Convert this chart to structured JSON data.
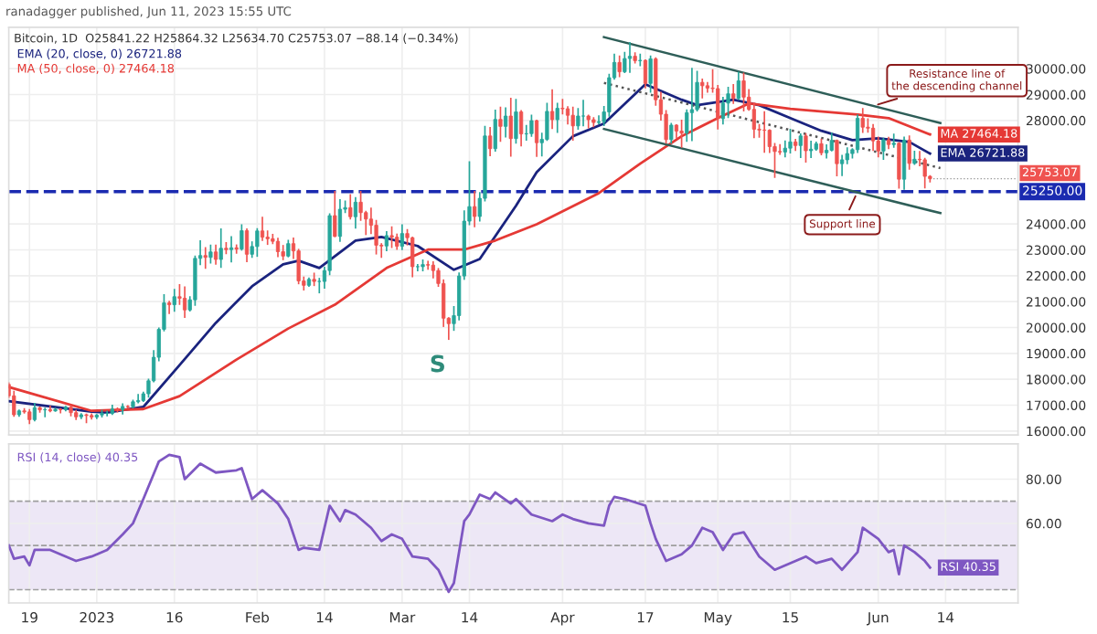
{
  "chart_data": [
    {
      "type": "candlestick",
      "title": "ranadagger published, Jun 11, 2023 15:55 UTC",
      "subtitle": "Bitcoin, 1D  O25841.22 H25864.32 L25634.70 C25753.07 −88.14 (−0.34%)",
      "x": [
        "2022-12-15",
        "2022-12-16",
        "2022-12-17",
        "2022-12-18",
        "2022-12-19",
        "2022-12-20",
        "2022-12-21",
        "2022-12-22",
        "2022-12-23",
        "2022-12-24",
        "2022-12-25",
        "2022-12-26",
        "2022-12-27",
        "2022-12-28",
        "2022-12-29",
        "2022-12-30",
        "2022-12-31",
        "2023-01-01",
        "2023-01-02",
        "2023-01-03",
        "2023-01-04",
        "2023-01-05",
        "2023-01-06",
        "2023-01-07",
        "2023-01-08",
        "2023-01-09",
        "2023-01-10",
        "2023-01-11",
        "2023-01-12",
        "2023-01-13",
        "2023-01-14",
        "2023-01-15",
        "2023-01-16",
        "2023-01-17",
        "2023-01-18",
        "2023-01-19",
        "2023-01-20",
        "2023-01-21",
        "2023-01-22",
        "2023-01-23",
        "2023-01-24",
        "2023-01-25",
        "2023-01-26",
        "2023-01-27",
        "2023-01-28",
        "2023-01-29",
        "2023-01-30",
        "2023-01-31",
        "2023-02-01",
        "2023-02-02",
        "2023-02-03",
        "2023-02-04",
        "2023-02-05",
        "2023-02-06",
        "2023-02-07",
        "2023-02-08",
        "2023-02-09",
        "2023-02-10",
        "2023-02-11",
        "2023-02-12",
        "2023-02-13",
        "2023-02-14",
        "2023-02-15",
        "2023-02-16",
        "2023-02-17",
        "2023-02-18",
        "2023-02-19",
        "2023-02-20",
        "2023-02-21",
        "2023-02-22",
        "2023-02-23",
        "2023-02-24",
        "2023-02-25",
        "2023-02-26",
        "2023-02-27",
        "2023-02-28",
        "2023-03-01",
        "2023-03-02",
        "2023-03-03",
        "2023-03-04",
        "2023-03-05",
        "2023-03-06",
        "2023-03-07",
        "2023-03-08",
        "2023-03-09",
        "2023-03-10",
        "2023-03-11",
        "2023-03-12",
        "2023-03-13",
        "2023-03-14",
        "2023-03-15",
        "2023-03-16",
        "2023-03-17",
        "2023-03-18",
        "2023-03-19",
        "2023-03-20",
        "2023-03-21",
        "2023-03-22",
        "2023-03-23",
        "2023-03-24",
        "2023-03-25",
        "2023-03-26",
        "2023-03-27",
        "2023-03-28",
        "2023-03-29",
        "2023-03-30",
        "2023-03-31",
        "2023-04-01",
        "2023-04-02",
        "2023-04-03",
        "2023-04-04",
        "2023-04-05",
        "2023-04-06",
        "2023-04-07",
        "2023-04-08",
        "2023-04-09",
        "2023-04-10",
        "2023-04-11",
        "2023-04-12",
        "2023-04-13",
        "2023-04-14",
        "2023-04-15",
        "2023-04-16",
        "2023-04-17",
        "2023-04-18",
        "2023-04-19",
        "2023-04-20",
        "2023-04-21",
        "2023-04-22",
        "2023-04-23",
        "2023-04-24",
        "2023-04-25",
        "2023-04-26",
        "2023-04-27",
        "2023-04-28",
        "2023-04-29",
        "2023-04-30",
        "2023-05-01",
        "2023-05-02",
        "2023-05-03",
        "2023-05-04",
        "2023-05-05",
        "2023-05-06",
        "2023-05-07",
        "2023-05-08",
        "2023-05-09",
        "2023-05-10",
        "2023-05-11",
        "2023-05-12",
        "2023-05-13",
        "2023-05-14",
        "2023-05-15",
        "2023-05-16",
        "2023-05-17",
        "2023-05-18",
        "2023-05-19",
        "2023-05-20",
        "2023-05-21",
        "2023-05-22",
        "2023-05-23",
        "2023-05-24",
        "2023-05-25",
        "2023-05-26",
        "2023-05-27",
        "2023-05-28",
        "2023-05-29",
        "2023-05-30",
        "2023-05-31",
        "2023-06-01",
        "2023-06-02",
        "2023-06-03",
        "2023-06-04",
        "2023-06-05",
        "2023-06-06",
        "2023-06-07",
        "2023-06-08",
        "2023-06-09",
        "2023-06-10",
        "2023-06-11"
      ],
      "ohlc": [
        [
          17800,
          17850,
          17300,
          17360
        ],
        [
          17360,
          17530,
          16580,
          16630
        ],
        [
          16630,
          16800,
          16580,
          16780
        ],
        [
          16780,
          16860,
          16700,
          16740
        ],
        [
          16740,
          16820,
          16300,
          16440
        ],
        [
          16440,
          17060,
          16400,
          16900
        ],
        [
          16900,
          16920,
          16740,
          16820
        ],
        [
          16820,
          16870,
          16560,
          16830
        ],
        [
          16830,
          16950,
          16760,
          16780
        ],
        [
          16780,
          16870,
          16770,
          16840
        ],
        [
          16840,
          16860,
          16710,
          16830
        ],
        [
          16830,
          16940,
          16790,
          16920
        ],
        [
          16920,
          16970,
          16600,
          16710
        ],
        [
          16710,
          16790,
          16460,
          16550
        ],
        [
          16550,
          16660,
          16490,
          16630
        ],
        [
          16630,
          16640,
          16330,
          16600
        ],
        [
          16600,
          16650,
          16470,
          16540
        ],
        [
          16540,
          16630,
          16490,
          16620
        ],
        [
          16620,
          16790,
          16550,
          16680
        ],
        [
          16680,
          16760,
          16600,
          16680
        ],
        [
          16680,
          16990,
          16650,
          16850
        ],
        [
          16850,
          16880,
          16750,
          16830
        ],
        [
          16830,
          17040,
          16670,
          16950
        ],
        [
          16950,
          16970,
          16910,
          16940
        ],
        [
          16940,
          17180,
          16910,
          17130
        ],
        [
          17130,
          17400,
          17100,
          17180
        ],
        [
          17180,
          17490,
          17150,
          17440
        ],
        [
          17440,
          17990,
          17320,
          17940
        ],
        [
          17940,
          19100,
          17910,
          18850
        ],
        [
          18850,
          19970,
          18720,
          19930
        ],
        [
          19930,
          21260,
          19880,
          20950
        ],
        [
          20950,
          21000,
          20550,
          20880
        ],
        [
          20880,
          21460,
          20640,
          21190
        ],
        [
          21190,
          21650,
          20900,
          21130
        ],
        [
          21130,
          21560,
          20400,
          20680
        ],
        [
          20680,
          21180,
          20650,
          21070
        ],
        [
          21070,
          22750,
          20870,
          22670
        ],
        [
          22670,
          23340,
          22440,
          22780
        ],
        [
          22780,
          23080,
          22300,
          22710
        ],
        [
          22710,
          23170,
          22500,
          22920
        ],
        [
          22920,
          23170,
          22460,
          22630
        ],
        [
          22630,
          23800,
          22330,
          23060
        ],
        [
          23060,
          23270,
          22860,
          23010
        ],
        [
          23010,
          23500,
          22540,
          23080
        ],
        [
          23080,
          23180,
          22880,
          23030
        ],
        [
          23030,
          23960,
          23000,
          23740
        ],
        [
          23740,
          23800,
          22550,
          22830
        ],
        [
          22830,
          23300,
          22720,
          23130
        ],
        [
          23130,
          23810,
          22760,
          23730
        ],
        [
          23730,
          24250,
          23370,
          23490
        ],
        [
          23490,
          23720,
          23220,
          23430
        ],
        [
          23430,
          23590,
          23250,
          23330
        ],
        [
          23330,
          23440,
          22750,
          22930
        ],
        [
          22930,
          23160,
          22630,
          22760
        ],
        [
          22760,
          23360,
          22740,
          23240
        ],
        [
          23240,
          23450,
          22680,
          22960
        ],
        [
          22960,
          23010,
          21700,
          21800
        ],
        [
          21800,
          21940,
          21460,
          21630
        ],
        [
          21630,
          21900,
          21600,
          21860
        ],
        [
          21860,
          22090,
          21630,
          21780
        ],
        [
          21780,
          21890,
          21350,
          21780
        ],
        [
          21780,
          22320,
          21530,
          22200
        ],
        [
          22200,
          24380,
          22050,
          24320
        ],
        [
          24320,
          25250,
          23520,
          23520
        ],
        [
          23520,
          24930,
          23340,
          24570
        ],
        [
          24570,
          24880,
          24450,
          24630
        ],
        [
          24630,
          25120,
          24200,
          24280
        ],
        [
          24280,
          25010,
          23850,
          24840
        ],
        [
          24840,
          25250,
          24150,
          24440
        ],
        [
          24440,
          24480,
          23600,
          24190
        ],
        [
          24190,
          24600,
          23640,
          23950
        ],
        [
          23950,
          24130,
          22850,
          23180
        ],
        [
          23180,
          23230,
          22720,
          23150
        ],
        [
          23150,
          23690,
          22980,
          23550
        ],
        [
          23550,
          23880,
          23100,
          23490
        ],
        [
          23490,
          23600,
          23030,
          23140
        ],
        [
          23140,
          23960,
          23020,
          23630
        ],
        [
          23630,
          23770,
          23200,
          23470
        ],
        [
          23470,
          23480,
          21970,
          22350
        ],
        [
          22350,
          22420,
          22200,
          22350
        ],
        [
          22350,
          22600,
          22200,
          22430
        ],
        [
          22430,
          22550,
          22260,
          22410
        ],
        [
          22410,
          22530,
          21930,
          22200
        ],
        [
          22200,
          22270,
          21600,
          21700
        ],
        [
          21700,
          21830,
          20050,
          20360
        ],
        [
          20360,
          20370,
          19550,
          20150
        ],
        [
          20150,
          20800,
          19900,
          20460
        ],
        [
          20460,
          22100,
          20300,
          21990
        ],
        [
          21990,
          24500,
          21870,
          24110
        ],
        [
          24110,
          26390,
          23980,
          24670
        ],
        [
          24670,
          25250,
          23900,
          24290
        ],
        [
          24290,
          25200,
          24120,
          24990
        ],
        [
          24990,
          27760,
          24900,
          27400
        ],
        [
          27400,
          27720,
          26650,
          26910
        ],
        [
          26910,
          28390,
          26820,
          28040
        ],
        [
          28040,
          28500,
          27200,
          27770
        ],
        [
          27770,
          28480,
          27370,
          28170
        ],
        [
          28170,
          28850,
          26630,
          27300
        ],
        [
          27300,
          28800,
          27130,
          28330
        ],
        [
          28330,
          28370,
          27030,
          27480
        ],
        [
          27480,
          27800,
          27250,
          27490
        ],
        [
          27490,
          28190,
          27400,
          27990
        ],
        [
          27990,
          28000,
          26620,
          27140
        ],
        [
          27140,
          27500,
          26640,
          27270
        ],
        [
          27270,
          28650,
          27240,
          28350
        ],
        [
          28350,
          29170,
          27700,
          28030
        ],
        [
          28030,
          28650,
          27550,
          28470
        ],
        [
          28470,
          28800,
          28260,
          28450
        ],
        [
          28450,
          28520,
          27870,
          28200
        ],
        [
          28200,
          28500,
          27250,
          27790
        ],
        [
          27790,
          28450,
          27670,
          28170
        ],
        [
          28170,
          28770,
          27800,
          28170
        ],
        [
          28170,
          28190,
          27720,
          28030
        ],
        [
          28030,
          28100,
          27770,
          27920
        ],
        [
          27920,
          28170,
          27880,
          27950
        ],
        [
          27950,
          28530,
          27810,
          28330
        ],
        [
          28330,
          29770,
          28170,
          29650
        ],
        [
          29650,
          30550,
          29600,
          30240
        ],
        [
          30240,
          30480,
          29700,
          29880
        ],
        [
          29880,
          30620,
          29860,
          30390
        ],
        [
          30390,
          31000,
          29870,
          30480
        ],
        [
          30480,
          30600,
          30230,
          30310
        ],
        [
          30310,
          30550,
          30120,
          30320
        ],
        [
          30320,
          30330,
          29270,
          29430
        ],
        [
          29430,
          30480,
          29100,
          30380
        ],
        [
          30380,
          30410,
          28600,
          28800
        ],
        [
          28800,
          29080,
          28020,
          28240
        ],
        [
          28240,
          28370,
          27130,
          27260
        ],
        [
          27260,
          27880,
          27130,
          27820
        ],
        [
          27820,
          27820,
          27330,
          27590
        ],
        [
          27590,
          28000,
          26970,
          27510
        ],
        [
          27510,
          28400,
          27200,
          28300
        ],
        [
          28300,
          30000,
          27230,
          28420
        ],
        [
          28420,
          29890,
          28380,
          29470
        ],
        [
          29470,
          29590,
          28880,
          29340
        ],
        [
          29340,
          29460,
          29100,
          29250
        ],
        [
          29250,
          29950,
          29100,
          29230
        ],
        [
          29230,
          29340,
          27680,
          28070
        ],
        [
          28070,
          28880,
          27870,
          28670
        ],
        [
          28670,
          29270,
          28120,
          29030
        ],
        [
          29030,
          29380,
          28670,
          28850
        ],
        [
          28850,
          29850,
          28820,
          29530
        ],
        [
          29530,
          29820,
          28380,
          28900
        ],
        [
          28900,
          29180,
          28400,
          28430
        ],
        [
          28430,
          28660,
          27340,
          27660
        ],
        [
          27660,
          27830,
          27360,
          27630
        ],
        [
          27630,
          28330,
          26780,
          27620
        ],
        [
          27620,
          27630,
          26770,
          26990
        ],
        [
          26990,
          27100,
          25810,
          26800
        ],
        [
          26800,
          27060,
          26700,
          26780
        ],
        [
          26780,
          27200,
          26600,
          26930
        ],
        [
          26930,
          27650,
          26750,
          27170
        ],
        [
          27170,
          27260,
          26850,
          27030
        ],
        [
          27030,
          27470,
          26580,
          27400
        ],
        [
          27400,
          27480,
          26400,
          26830
        ],
        [
          26830,
          27190,
          26580,
          26890
        ],
        [
          26890,
          27150,
          26860,
          27100
        ],
        [
          27100,
          27270,
          26680,
          26750
        ],
        [
          26750,
          27050,
          26560,
          26850
        ],
        [
          26850,
          27500,
          26830,
          27230
        ],
        [
          27230,
          27230,
          25870,
          26330
        ],
        [
          26330,
          26640,
          25880,
          26480
        ],
        [
          26480,
          26930,
          26340,
          26720
        ],
        [
          26720,
          26900,
          26560,
          26870
        ],
        [
          26870,
          28200,
          26770,
          28080
        ],
        [
          28080,
          28450,
          27550,
          27740
        ],
        [
          27740,
          28050,
          27560,
          27700
        ],
        [
          27700,
          27830,
          26850,
          27210
        ],
        [
          27210,
          27350,
          26600,
          26820
        ],
        [
          26820,
          27300,
          26510,
          27250
        ],
        [
          27250,
          27340,
          26920,
          27070
        ],
        [
          27070,
          27460,
          26970,
          27120
        ],
        [
          27120,
          27130,
          25390,
          25730
        ],
        [
          25730,
          27350,
          25350,
          27240
        ],
        [
          27240,
          27390,
          26130,
          26340
        ],
        [
          26340,
          26800,
          26310,
          26500
        ],
        [
          26500,
          26790,
          26260,
          26480
        ],
        [
          26480,
          26530,
          25400,
          25840
        ],
        [
          25840,
          25860,
          25630,
          25750
        ]
      ],
      "colors": [
        "#ef5350",
        "#ef5350",
        "#26a69a",
        "#ef5350",
        "#ef5350",
        "#26a69a",
        "#ef5350",
        "#26a69a",
        "#ef5350",
        "#26a69a",
        "#ef5350",
        "#26a69a",
        "#ef5350",
        "#ef5350",
        "#26a69a",
        "#ef5350",
        "#ef5350",
        "#26a69a",
        "#26a69a",
        "#26a69a",
        "#26a69a",
        "#ef5350",
        "#26a69a",
        "#ef5350",
        "#26a69a",
        "#26a69a",
        "#26a69a",
        "#26a69a",
        "#26a69a",
        "#26a69a",
        "#26a69a",
        "#ef5350",
        "#26a69a",
        "#ef5350",
        "#ef5350",
        "#26a69a",
        "#26a69a",
        "#26a69a",
        "#ef5350",
        "#26a69a",
        "#ef5350",
        "#26a69a",
        "#ef5350",
        "#26a69a",
        "#ef5350",
        "#26a69a",
        "#ef5350",
        "#26a69a",
        "#26a69a",
        "#ef5350",
        "#ef5350",
        "#ef5350",
        "#ef5350",
        "#ef5350",
        "#26a69a",
        "#ef5350",
        "#ef5350",
        "#ef5350",
        "#26a69a",
        "#ef5350",
        "#26a69a",
        "#26a69a",
        "#26a69a",
        "#ef5350",
        "#26a69a",
        "#26a69a",
        "#ef5350",
        "#26a69a",
        "#ef5350",
        "#ef5350",
        "#ef5350",
        "#ef5350",
        "#ef5350",
        "#26a69a",
        "#ef5350",
        "#ef5350",
        "#26a69a",
        "#ef5350",
        "#ef5350",
        "#26a69a",
        "#26a69a",
        "#ef5350",
        "#ef5350",
        "#ef5350",
        "#ef5350",
        "#ef5350",
        "#26a69a",
        "#26a69a",
        "#26a69a",
        "#26a69a",
        "#ef5350",
        "#26a69a",
        "#26a69a",
        "#ef5350",
        "#26a69a",
        "#ef5350",
        "#26a69a",
        "#ef5350",
        "#26a69a",
        "#ef5350",
        "#26a69a",
        "#26a69a",
        "#ef5350",
        "#26a69a",
        "#26a69a",
        "#ef5350",
        "#26a69a",
        "#ef5350",
        "#ef5350",
        "#ef5350",
        "#26a69a",
        "#26a69a",
        "#ef5350",
        "#ef5350",
        "#26a69a",
        "#26a69a",
        "#26a69a",
        "#26a69a",
        "#ef5350",
        "#26a69a",
        "#26a69a",
        "#ef5350",
        "#26a69a",
        "#ef5350",
        "#26a69a",
        "#ef5350",
        "#ef5350",
        "#ef5350",
        "#26a69a",
        "#ef5350",
        "#ef5350",
        "#26a69a",
        "#26a69a",
        "#26a69a",
        "#ef5350",
        "#ef5350",
        "#ef5350",
        "#ef5350",
        "#26a69a",
        "#26a69a",
        "#ef5350",
        "#26a69a",
        "#ef5350",
        "#ef5350",
        "#ef5350",
        "#ef5350",
        "#ef5350",
        "#ef5350",
        "#ef5350",
        "#ef5350",
        "#26a69a",
        "#26a69a",
        "#ef5350",
        "#26a69a",
        "#ef5350",
        "#26a69a",
        "#26a69a",
        "#ef5350",
        "#26a69a",
        "#26a69a",
        "#ef5350",
        "#26a69a",
        "#26a69a",
        "#26a69a",
        "#26a69a",
        "#ef5350",
        "#ef5350",
        "#ef5350",
        "#ef5350",
        "#26a69a",
        "#ef5350",
        "#26a69a",
        "#ef5350",
        "#26a69a",
        "#ef5350",
        "#26a69a",
        "#ef5350",
        "#ef5350",
        "#ef5350"
      ],
      "series": [
        {
          "type": "line",
          "name": "EMA (20, close, 0) 26721.88",
          "color": "#1a237e",
          "x": [
            "2022-12-15",
            "2022-12-31",
            "2023-01-03",
            "2023-01-10",
            "2023-01-17",
            "2023-01-24",
            "2023-01-31",
            "2023-02-06",
            "2023-02-09",
            "2023-02-13",
            "2023-02-20",
            "2023-02-25",
            "2023-03-04",
            "2023-03-11",
            "2023-03-16",
            "2023-03-23",
            "2023-03-27",
            "2023-04-03",
            "2023-04-09",
            "2023-04-17",
            "2023-04-24",
            "2023-04-27",
            "2023-05-04",
            "2023-05-09",
            "2023-05-15",
            "2023-05-21",
            "2023-05-27",
            "2023-06-01",
            "2023-06-07",
            "2023-06-11"
          ],
          "values": [
            17150,
            16750,
            16710,
            16930,
            18550,
            20180,
            21590,
            22440,
            22580,
            22300,
            23360,
            23500,
            23150,
            22230,
            22650,
            24700,
            26000,
            27390,
            27880,
            29400,
            28800,
            28590,
            28800,
            28590,
            28090,
            27600,
            27240,
            27310,
            27170,
            26720
          ],
          "value_labels": [
            null,
            null,
            null,
            null,
            null,
            null,
            null,
            null,
            null,
            null,
            null,
            null,
            null,
            null,
            null,
            null,
            null,
            null,
            null,
            null,
            null,
            null,
            null,
            null,
            null,
            null,
            null,
            null,
            null,
            "EMA 26721.88"
          ]
        },
        {
          "type": "line",
          "name": "MA (50, close, 0) 27464.18",
          "color": "#e53935",
          "x": [
            "2022-12-15",
            "2022-12-31",
            "2023-01-10",
            "2023-01-17",
            "2023-01-28",
            "2023-02-07",
            "2023-02-16",
            "2023-02-26",
            "2023-03-06",
            "2023-03-13",
            "2023-03-19",
            "2023-03-27",
            "2023-04-08",
            "2023-04-16",
            "2023-04-24",
            "2023-05-01",
            "2023-05-07",
            "2023-05-15",
            "2023-05-28",
            "2023-06-03",
            "2023-06-11"
          ],
          "values": [
            17700,
            16780,
            16850,
            17350,
            18760,
            19960,
            20880,
            22300,
            23010,
            23010,
            23360,
            23990,
            25190,
            26330,
            27390,
            28090,
            28660,
            28450,
            28230,
            28090,
            27460
          ],
          "value_labels": [
            null,
            null,
            null,
            null,
            null,
            null,
            null,
            null,
            null,
            null,
            null,
            null,
            null,
            null,
            null,
            null,
            null,
            null,
            null,
            null,
            "MA 27464.18"
          ]
        },
        {
          "type": "line",
          "color": "#2e5e58",
          "x": [
            "2023-04-09",
            "2023-06-13"
          ],
          "values": [
            31220,
            27900
          ]
        },
        {
          "type": "line",
          "color": "#2e5e58",
          "x": [
            "2023-04-09",
            "2023-06-13"
          ],
          "values": [
            27670,
            24420
          ]
        },
        {
          "type": "line",
          "color": "#555555",
          "line_style": "dotted",
          "x": [
            "2023-04-09",
            "2023-06-13"
          ],
          "values": [
            29450,
            26160
          ]
        }
      ],
      "ref_lines": [
        {
          "axis": "y",
          "value": 25250,
          "label": "25250.00",
          "color": "#1a2ab0",
          "line_style": "dashed"
        }
      ],
      "annotations": [
        "S",
        {
          "text": "Resistance line of the descending channel",
          "x": "2023-05-31",
          "y": 28560
        },
        {
          "text": "Support line",
          "x": "2023-05-28",
          "y": 25250
        },
        {
          "text": "25753.07",
          "x": "2023-06-11",
          "y": 25750
        }
      ],
      "xlim": [
        "2022-12-15",
        "2023-06-28"
      ],
      "xticks": [
        {
          "value": "2022-12-19",
          "label": null
        },
        {
          "value": "2023-01-01",
          "label": null
        },
        {
          "value": "2023-01-16",
          "label": null
        },
        {
          "value": "2023-02-01",
          "label": null
        },
        {
          "value": "2023-02-14",
          "label": null
        },
        {
          "value": "2023-03-01",
          "label": null
        },
        {
          "value": "2023-03-14",
          "label": null
        },
        {
          "value": "2023-04-01",
          "label": null
        },
        {
          "value": "2023-04-17",
          "label": null
        },
        {
          "value": "2023-05-01",
          "label": null
        },
        {
          "value": "2023-05-15",
          "label": null
        },
        {
          "value": "2023-06-01",
          "label": null
        },
        {
          "value": "2023-06-14",
          "label": null
        }
      ],
      "ylim": [
        15850,
        31600
      ],
      "yticks": [
        {
          "value": 16000,
          "label": "16000.00"
        },
        {
          "value": 17000,
          "label": "17000.00"
        },
        {
          "value": 18000,
          "label": "18000.00"
        },
        {
          "value": 19000,
          "label": "19000.00"
        },
        {
          "value": 20000,
          "label": "20000.00"
        },
        {
          "value": 21000,
          "label": "21000.00"
        },
        {
          "value": 22000,
          "label": "22000.00"
        },
        {
          "value": 23000,
          "label": "23000.00"
        },
        {
          "value": 24000,
          "label": "24000.00"
        },
        {
          "value": 28000,
          "label": "28000.00"
        },
        {
          "value": 29000,
          "label": "29000.00"
        },
        {
          "value": 30000,
          "label": "30000.00"
        }
      ],
      "tick_labels": "y",
      "grid": true,
      "legend": "top left"
    },
    {
      "type": "line",
      "series": [
        {
          "type": "line",
          "name": "RSI (14, close) 40.35",
          "color": "#7e57c2",
          "x": [
            "2022-12-15",
            "2022-12-16",
            "2022-12-18",
            "2022-12-19",
            "2022-12-20",
            "2022-12-23",
            "2022-12-28",
            "2022-12-31",
            "2023-01-03",
            "2023-01-06",
            "2023-01-08",
            "2023-01-10",
            "2023-01-13",
            "2023-01-15",
            "2023-01-17",
            "2023-01-18",
            "2023-01-21",
            "2023-01-24",
            "2023-01-28",
            "2023-01-29",
            "2023-01-31",
            "2023-02-02",
            "2023-02-05",
            "2023-02-07",
            "2023-02-09",
            "2023-02-10",
            "2023-02-13",
            "2023-02-15",
            "2023-02-17",
            "2023-02-18",
            "2023-02-20",
            "2023-02-23",
            "2023-02-25",
            "2023-02-27",
            "2023-03-01",
            "2023-03-03",
            "2023-03-06",
            "2023-03-08",
            "2023-03-10",
            "2023-03-11",
            "2023-03-13",
            "2023-03-14",
            "2023-03-16",
            "2023-03-18",
            "2023-03-19",
            "2023-03-22",
            "2023-03-23",
            "2023-03-26",
            "2023-03-30",
            "2023-04-01",
            "2023-04-03",
            "2023-04-06",
            "2023-04-09",
            "2023-04-10",
            "2023-04-11",
            "2023-04-13",
            "2023-04-17",
            "2023-04-18",
            "2023-04-19",
            "2023-04-21",
            "2023-04-24",
            "2023-04-26",
            "2023-04-28",
            "2023-04-30",
            "2023-05-02",
            "2023-05-04",
            "2023-05-06",
            "2023-05-09",
            "2023-05-12",
            "2023-05-18",
            "2023-05-20",
            "2023-05-23",
            "2023-05-25",
            "2023-05-28",
            "2023-05-29",
            "2023-06-01",
            "2023-06-03",
            "2023-06-04",
            "2023-06-05",
            "2023-06-06",
            "2023-06-08",
            "2023-06-10",
            "2023-06-11"
          ],
          "values": [
            50,
            44,
            45,
            41,
            48,
            48,
            43,
            45,
            48,
            55,
            60,
            71,
            88,
            91,
            90,
            80,
            87,
            83,
            84,
            85,
            71,
            75,
            69,
            62,
            48,
            49,
            48,
            68,
            61,
            66,
            64,
            58,
            52,
            55,
            53,
            45,
            44,
            39,
            29,
            33,
            61,
            64,
            73,
            71,
            74,
            69,
            71,
            64,
            61,
            64,
            62,
            60,
            59,
            68,
            72,
            71,
            68,
            60,
            53,
            43,
            46,
            50,
            58,
            56,
            48,
            55,
            56,
            45,
            39,
            45,
            42,
            44,
            39,
            47,
            58,
            53,
            47,
            48,
            37,
            50,
            47,
            43,
            40
          ],
          "value_labels": [
            null,
            null,
            null,
            null,
            null,
            null,
            null,
            null,
            null,
            null,
            null,
            null,
            null,
            null,
            null,
            null,
            null,
            null,
            null,
            null,
            null,
            null,
            null,
            null,
            null,
            null,
            null,
            null,
            null,
            null,
            null,
            null,
            null,
            null,
            null,
            null,
            null,
            null,
            null,
            null,
            null,
            null,
            null,
            null,
            null,
            null,
            null,
            null,
            null,
            null,
            null,
            null,
            null,
            null,
            null,
            null,
            null,
            null,
            null,
            null,
            null,
            null,
            null,
            null,
            null,
            null,
            null,
            null,
            null,
            null,
            null,
            null,
            null,
            null,
            null,
            null,
            null,
            null,
            null,
            null,
            null,
            null,
            "RSI 40.35"
          ]
        }
      ],
      "bands": [
        {
          "axis": "y",
          "from": 30,
          "to": 70,
          "color": "#ede7f6"
        }
      ],
      "ref_lines": [
        {
          "axis": "y",
          "value": 70,
          "color": "#9e9e9e",
          "line_style": "dashed"
        },
        {
          "axis": "y",
          "value": 50,
          "color": "#9e9e9e",
          "line_style": "dashed"
        },
        {
          "axis": "y",
          "value": 30,
          "color": "#9e9e9e",
          "line_style": "dashed"
        }
      ],
      "xlim": [
        "2022-12-15",
        "2023-06-28"
      ],
      "xticks": [
        {
          "value": "2022-12-19",
          "label": "19"
        },
        {
          "value": "2023-01-01",
          "label": "2023"
        },
        {
          "value": "2023-01-16",
          "label": "16"
        },
        {
          "value": "2023-02-01",
          "label": "Feb"
        },
        {
          "value": "2023-02-14",
          "label": "14"
        },
        {
          "value": "2023-03-01",
          "label": "Mar"
        },
        {
          "value": "2023-03-14",
          "label": "14"
        },
        {
          "value": "2023-04-01",
          "label": "Apr"
        },
        {
          "value": "2023-04-17",
          "label": "17"
        },
        {
          "value": "2023-05-01",
          "label": "May"
        },
        {
          "value": "2023-05-15",
          "label": "15"
        },
        {
          "value": "2023-06-01",
          "label": "Jun"
        },
        {
          "value": "2023-06-14",
          "label": "14"
        }
      ],
      "ylim": [
        24,
        96
      ],
      "yticks": [
        {
          "value": 60,
          "label": "60.00"
        },
        {
          "value": 80,
          "label": "80.00"
        }
      ],
      "grid": true,
      "legend": "top left"
    }
  ]
}
